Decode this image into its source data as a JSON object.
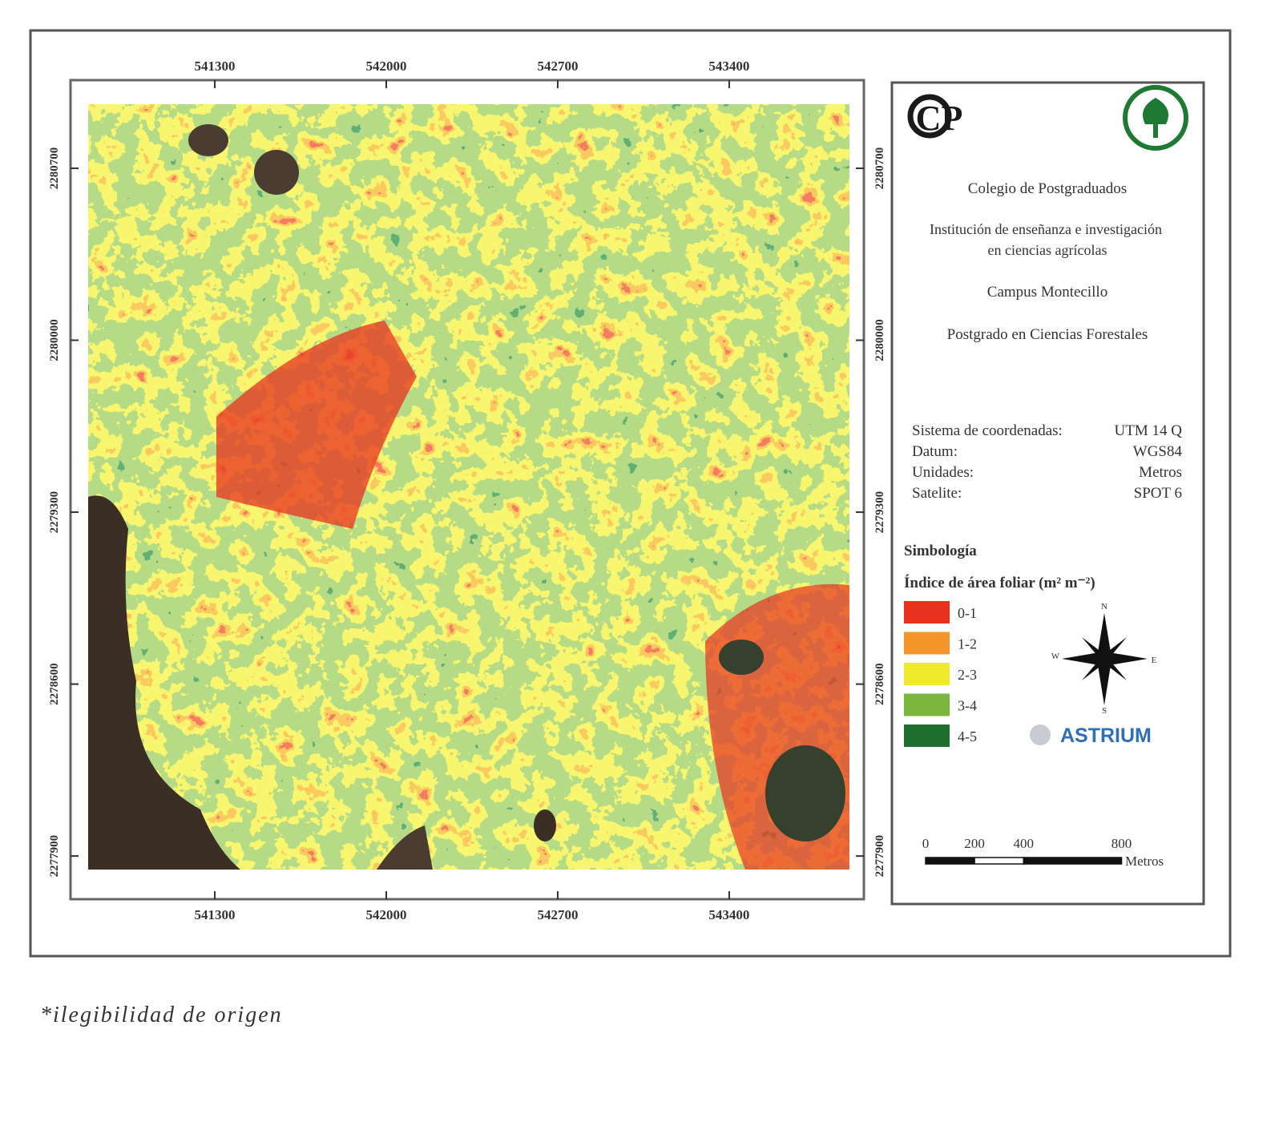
{
  "map": {
    "x_ticks": [
      541300,
      542000,
      542700,
      543400
    ],
    "y_ticks": [
      2280700,
      2280000,
      2279300,
      2278600,
      2277900
    ],
    "xlim": [
      540783,
      543891
    ],
    "ylim": [
      2277845,
      2280961
    ],
    "logo_text": "CP",
    "institution": "Colegio de Postgraduados",
    "description": [
      "Institución de enseñanza e investigación",
      "en ciencias agrícolas"
    ],
    "campus": "Campus Montecillo",
    "program": "Postgrado en Ciencias Forestales",
    "metadata": [
      {
        "label": "Sistema de coordenadas:",
        "value": "UTM 14 Q"
      },
      {
        "label": "Datum:",
        "value": "WGS84"
      },
      {
        "label": "Unidades:",
        "value": "Metros"
      },
      {
        "label": "Satelite:",
        "value": "SPOT 6"
      }
    ],
    "legend_heading": "Simbología",
    "legend_title": "Índice de área foliar (m² m⁻²)",
    "classes": [
      {
        "label": "0-1",
        "color": "#e8321e"
      },
      {
        "label": "1-2",
        "color": "#f5962a"
      },
      {
        "label": "2-3",
        "color": "#f0ea2c"
      },
      {
        "label": "3-4",
        "color": "#7ab53e"
      },
      {
        "label": "4-5",
        "color": "#1e6e2e"
      }
    ],
    "compass": {
      "n": "N",
      "w": "W",
      "e": "E",
      "s": "S"
    },
    "provider": "ASTRIUM",
    "scale_ticks": [
      0,
      200,
      400,
      800
    ],
    "scale_unit": "Metros"
  },
  "footnote": "*ilegibilidad de origen"
}
